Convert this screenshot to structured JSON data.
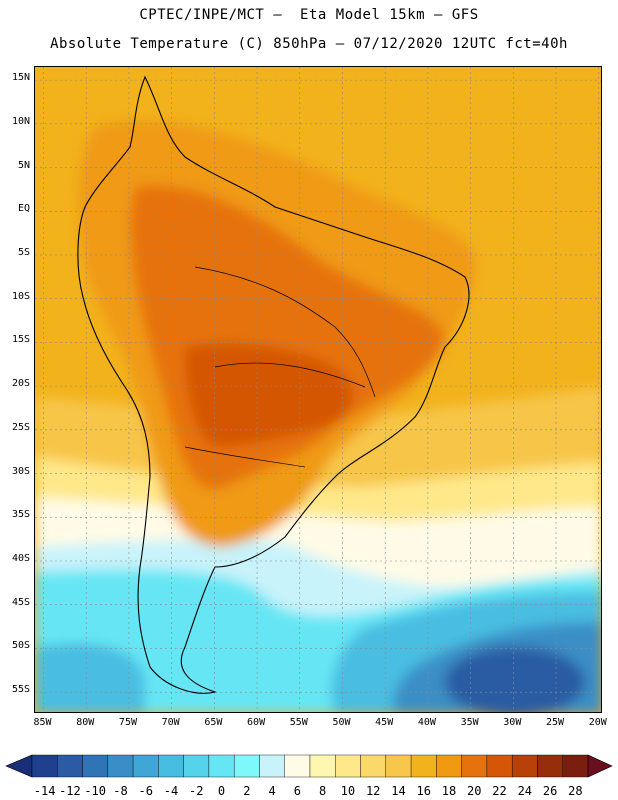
{
  "header": {
    "line1": "CPTEC/INPE/MCT –  Eta Model 15km – GFS",
    "line2": "Absolute Temperature (C) 850hPa – 07/12/2020 12UTC fct=40h"
  },
  "map": {
    "lat_labels": [
      "15N",
      "10N",
      "5N",
      "EQ",
      "5S",
      "10S",
      "15S",
      "20S",
      "25S",
      "30S",
      "35S",
      "40S",
      "45S",
      "50S",
      "55S"
    ],
    "lon_labels": [
      "85W",
      "80W",
      "75W",
      "70W",
      "65W",
      "60W",
      "55W",
      "50W",
      "45W",
      "40W",
      "35W",
      "30W",
      "25W",
      "20W"
    ],
    "lat_range": [
      -57.5,
      16.5
    ],
    "lon_range": [
      -86,
      -19.5
    ]
  },
  "legend": {
    "labels": [
      "-14",
      "-12",
      "-10",
      "-8",
      "-6",
      "-4",
      "-2",
      "0",
      "2",
      "4",
      "6",
      "8",
      "10",
      "12",
      "14",
      "16",
      "18",
      "20",
      "22",
      "24",
      "26",
      "28"
    ],
    "colors": [
      "#1f3f8f",
      "#2a5ba3",
      "#2f74b5",
      "#3a8ec6",
      "#3fa6d6",
      "#48bde2",
      "#55d2ec",
      "#66e6f4",
      "#7ff8fb",
      "#c8f3fa",
      "#fffbe6",
      "#fff6b0",
      "#ffe88a",
      "#fbd86a",
      "#f7c64a",
      "#f2b21c",
      "#f09a12",
      "#e6720d",
      "#d45606",
      "#b8410a",
      "#962e0c",
      "#7a1e10"
    ],
    "under_color": "#1a2e78",
    "over_color": "#6a0f1e"
  }
}
